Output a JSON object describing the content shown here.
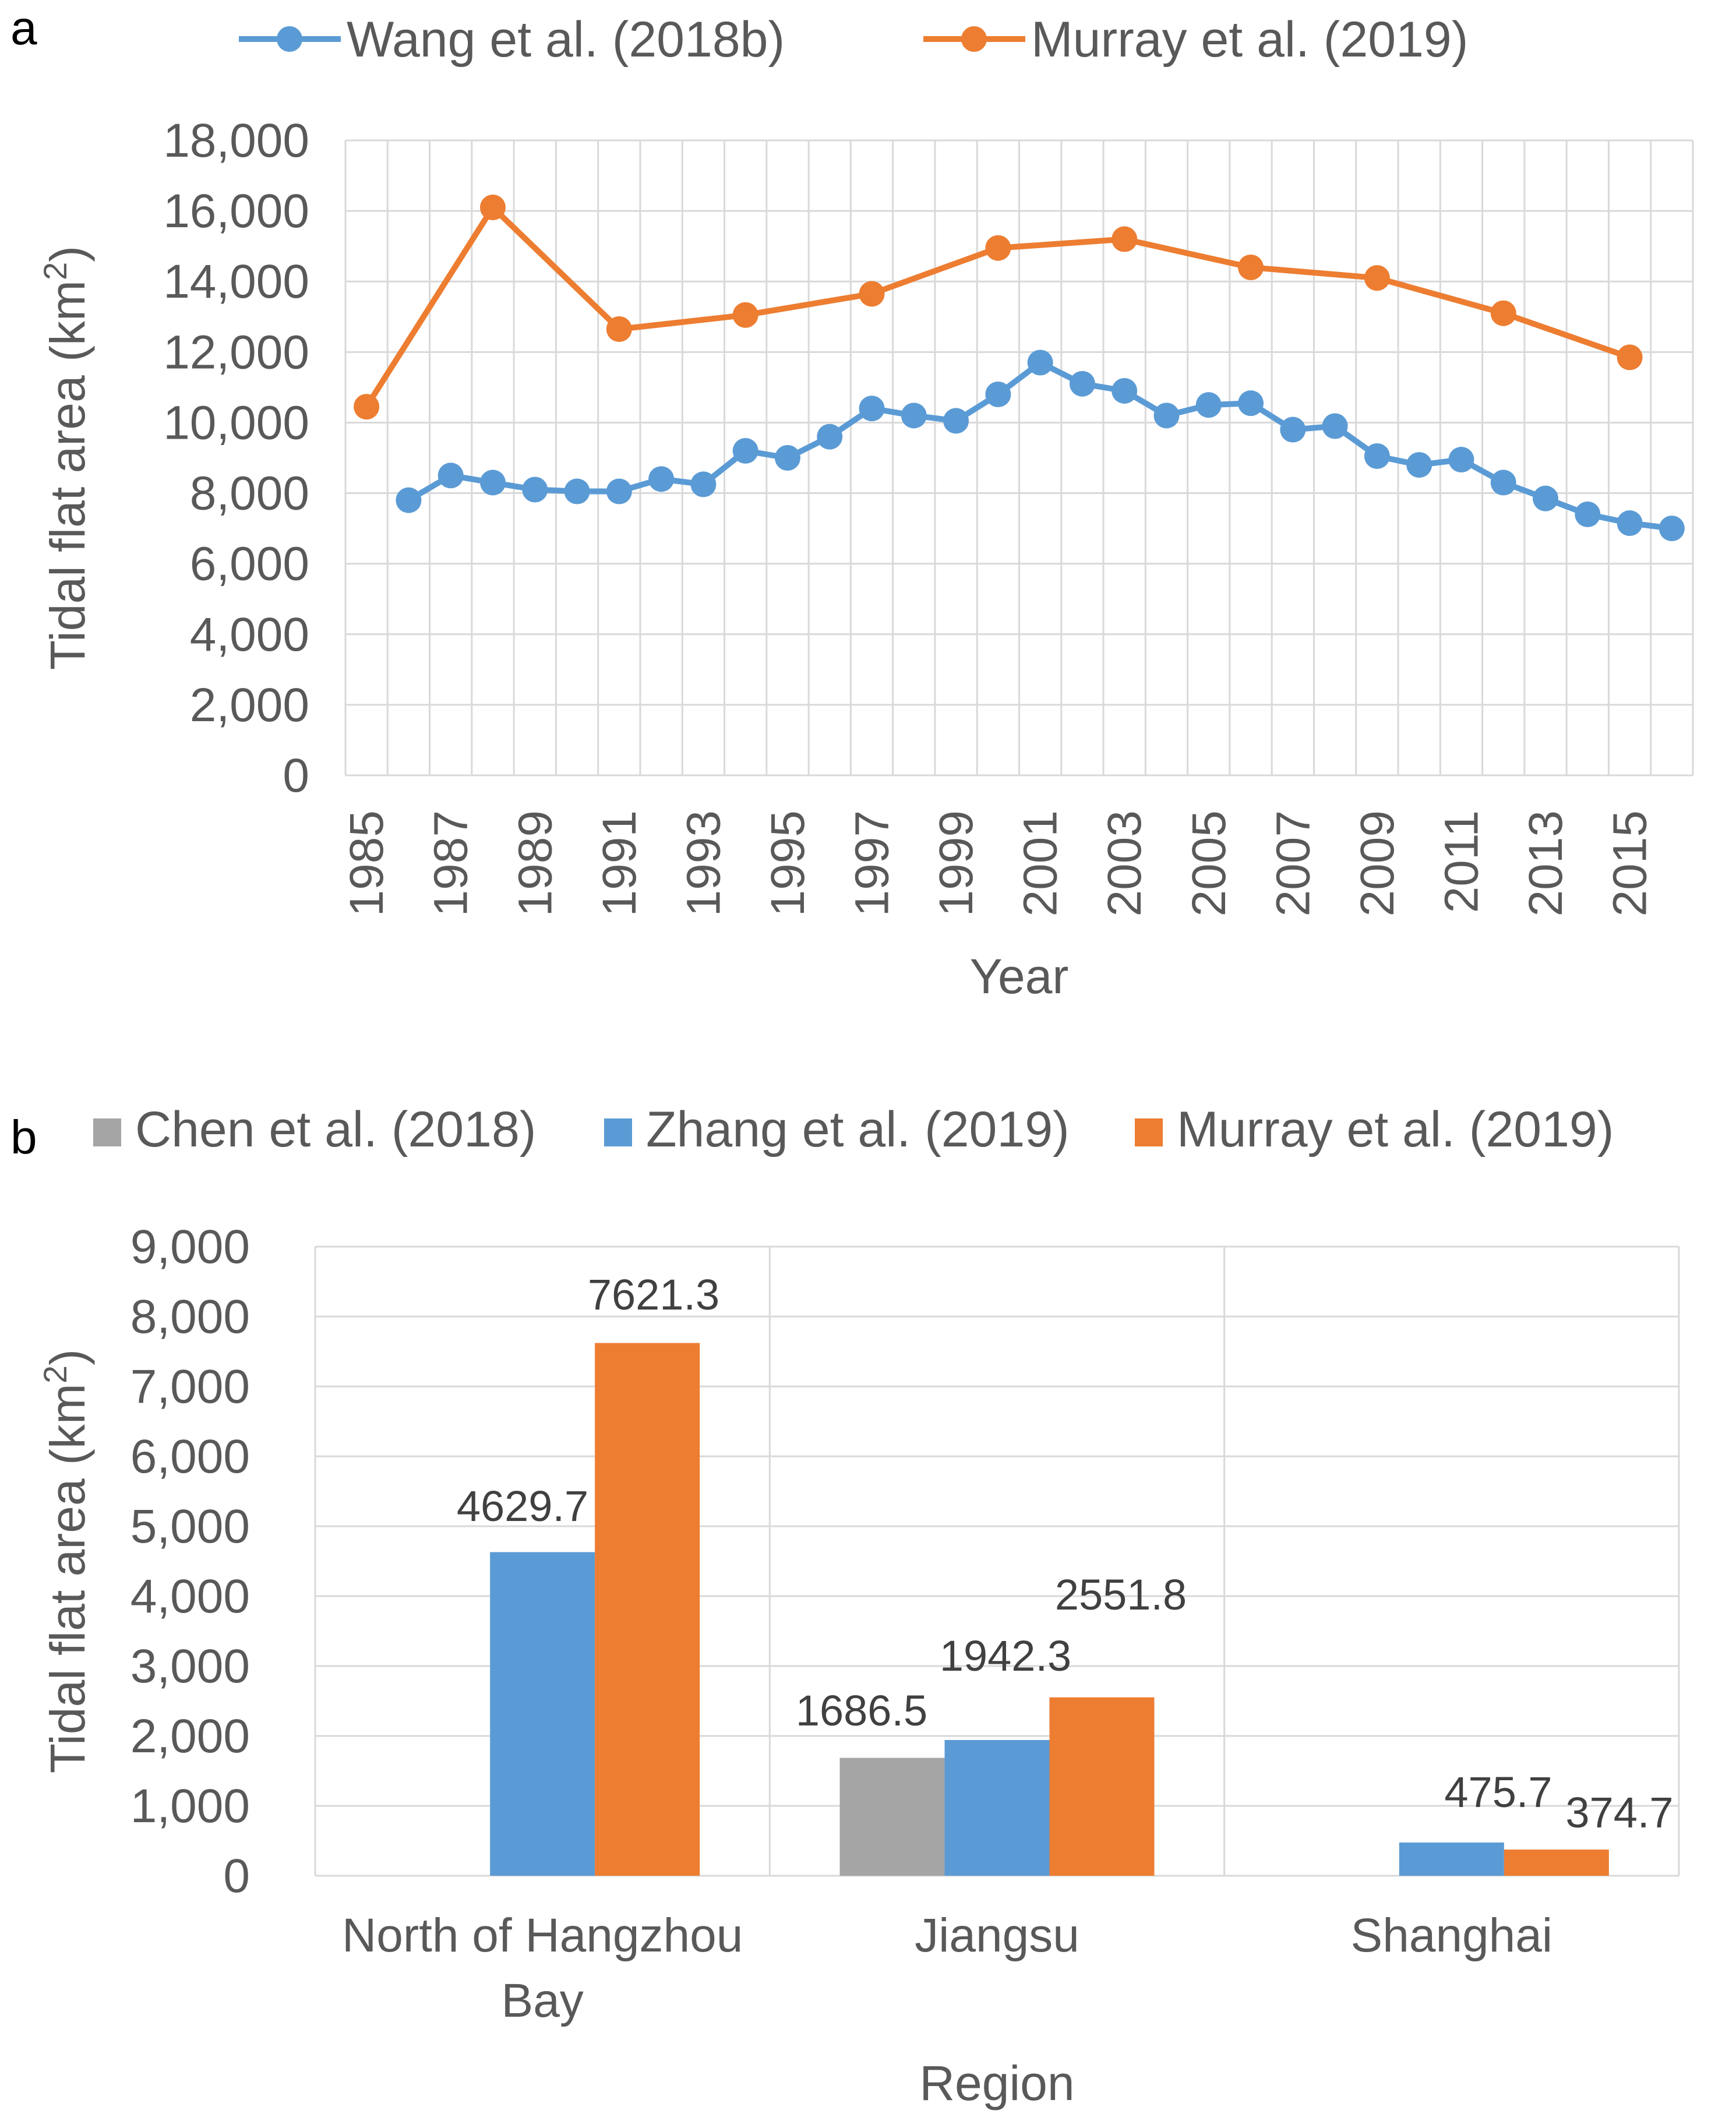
{
  "panel_a": {
    "letter": "a",
    "chart_data": {
      "type": "line",
      "xlabel": "Year",
      "ylabel": "Tidal flat area (km",
      "ylabel_sup": "2",
      "ylabel_close": ")",
      "ylim": [
        0,
        18000
      ],
      "y_ticks": [
        0,
        2000,
        4000,
        6000,
        8000,
        10000,
        12000,
        14000,
        16000,
        18000
      ],
      "y_tick_labels": [
        "0",
        "2,000",
        "4,000",
        "6,000",
        "8,000",
        "10,000",
        "12,000",
        "14,000",
        "16,000",
        "18,000"
      ],
      "x_categories": [
        1985,
        1986,
        1987,
        1988,
        1989,
        1990,
        1991,
        1992,
        1993,
        1994,
        1995,
        1996,
        1997,
        1998,
        1999,
        2000,
        2001,
        2002,
        2003,
        2004,
        2005,
        2006,
        2007,
        2008,
        2009,
        2010,
        2011,
        2012,
        2013,
        2014,
        2015,
        2016
      ],
      "x_tick_labels": [
        "1985",
        "1987",
        "1989",
        "1991",
        "1993",
        "1995",
        "1997",
        "1999",
        "2001",
        "2003",
        "2005",
        "2007",
        "2009",
        "2011",
        "2013",
        "2015"
      ],
      "grid": true,
      "legend_position": "top",
      "series": [
        {
          "name": "Wang et al. (2018b)",
          "color": "#5b9bd5",
          "points": [
            {
              "x": 1986,
              "y": 7800
            },
            {
              "x": 1987,
              "y": 8500
            },
            {
              "x": 1988,
              "y": 8300
            },
            {
              "x": 1989,
              "y": 8100
            },
            {
              "x": 1990,
              "y": 8050
            },
            {
              "x": 1991,
              "y": 8050
            },
            {
              "x": 1992,
              "y": 8400
            },
            {
              "x": 1993,
              "y": 8250
            },
            {
              "x": 1994,
              "y": 9200
            },
            {
              "x": 1995,
              "y": 9000
            },
            {
              "x": 1996,
              "y": 9600
            },
            {
              "x": 1997,
              "y": 10400
            },
            {
              "x": 1998,
              "y": 10200
            },
            {
              "x": 1999,
              "y": 10050
            },
            {
              "x": 2000,
              "y": 10800
            },
            {
              "x": 2001,
              "y": 11700
            },
            {
              "x": 2002,
              "y": 11100
            },
            {
              "x": 2003,
              "y": 10900
            },
            {
              "x": 2004,
              "y": 10200
            },
            {
              "x": 2005,
              "y": 10500
            },
            {
              "x": 2006,
              "y": 10550
            },
            {
              "x": 2007,
              "y": 9800
            },
            {
              "x": 2008,
              "y": 9900
            },
            {
              "x": 2009,
              "y": 9050
            },
            {
              "x": 2010,
              "y": 8800
            },
            {
              "x": 2011,
              "y": 8950
            },
            {
              "x": 2012,
              "y": 8300
            },
            {
              "x": 2013,
              "y": 7850
            },
            {
              "x": 2014,
              "y": 7400
            },
            {
              "x": 2015,
              "y": 7150
            },
            {
              "x": 2016,
              "y": 7000
            }
          ]
        },
        {
          "name": "Murray et al. (2019)",
          "color": "#ed7d31",
          "points": [
            {
              "x": 1985,
              "y": 10450
            },
            {
              "x": 1988,
              "y": 16100
            },
            {
              "x": 1991,
              "y": 12650
            },
            {
              "x": 1994,
              "y": 13050
            },
            {
              "x": 1997,
              "y": 13650
            },
            {
              "x": 2000,
              "y": 14950
            },
            {
              "x": 2003,
              "y": 15200
            },
            {
              "x": 2006,
              "y": 14400
            },
            {
              "x": 2009,
              "y": 14100
            },
            {
              "x": 2012,
              "y": 13100
            },
            {
              "x": 2015,
              "y": 11850
            }
          ]
        }
      ]
    }
  },
  "panel_b": {
    "letter": "b",
    "chart_data": {
      "type": "bar",
      "xlabel": "Region",
      "ylabel": "Tidal flat area (km",
      "ylabel_sup": "2",
      "ylabel_close": ")",
      "ylim": [
        0,
        9000
      ],
      "y_ticks": [
        0,
        1000,
        2000,
        3000,
        4000,
        5000,
        6000,
        7000,
        8000,
        9000
      ],
      "y_tick_labels": [
        "0",
        "1,000",
        "2,000",
        "3,000",
        "4,000",
        "5,000",
        "6,000",
        "7,000",
        "8,000",
        "9,000"
      ],
      "categories": [
        {
          "lines": [
            "North of Hangzhou",
            "Bay"
          ]
        },
        {
          "lines": [
            "Jiangsu"
          ]
        },
        {
          "lines": [
            "Shanghai"
          ]
        }
      ],
      "grid": true,
      "legend_position": "top",
      "series": [
        {
          "name": "Chen et al. (2018)",
          "color": "#a5a5a5",
          "values": [
            null,
            1686.5,
            null
          ],
          "labels": [
            "",
            "1686.5",
            ""
          ]
        },
        {
          "name": "Zhang et al. (2019)",
          "color": "#5b9bd5",
          "values": [
            4629.7,
            1942.3,
            475.7
          ],
          "labels": [
            "4629.7",
            "1942.3",
            "475.7"
          ]
        },
        {
          "name": "Murray et al. (2019)",
          "color": "#ed7d31",
          "values": [
            7621.3,
            2551.8,
            374.7
          ],
          "labels": [
            "7621.3",
            "2551.8",
            "374.7"
          ]
        }
      ]
    }
  }
}
